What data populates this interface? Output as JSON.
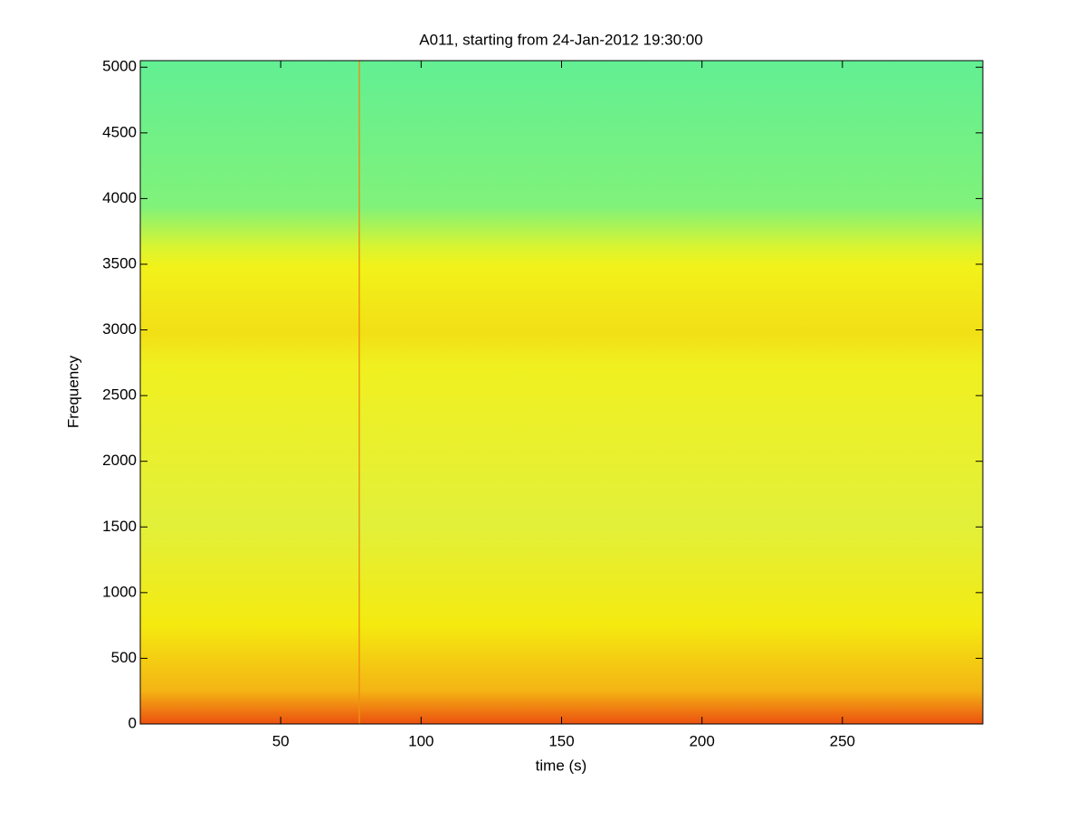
{
  "chart_data": {
    "type": "spectrogram",
    "title": "A011, starting from 24-Jan-2012 19:30:00",
    "xlabel": "time (s)",
    "ylabel": "Frequency",
    "xlim": [
      0,
      300
    ],
    "ylim": [
      0,
      5050
    ],
    "xticks": [
      50,
      100,
      150,
      200,
      250
    ],
    "yticks": [
      0,
      500,
      1000,
      1500,
      2000,
      2500,
      3000,
      3500,
      4000,
      4500,
      5000
    ]
  }
}
